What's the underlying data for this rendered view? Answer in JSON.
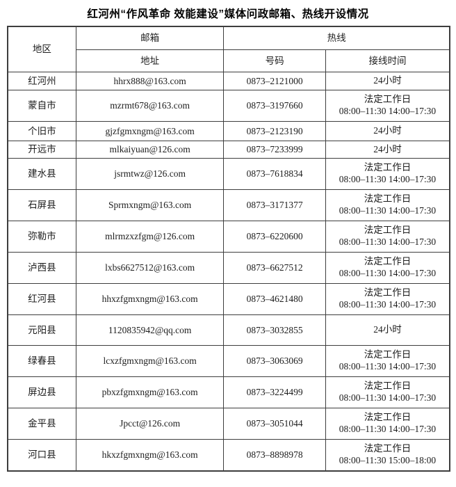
{
  "title": "红河州“作风革命 效能建设”媒体问政邮箱、热线开设情况",
  "colors": {
    "background": "#ffffff",
    "border": "#3d3d3d",
    "text": "#1c1c1c"
  },
  "table": {
    "headers": {
      "region": "地区",
      "mailbox_group": "邮箱",
      "hotline_group": "热线",
      "address": "地址",
      "number": "号码",
      "answer_time": "接线时间"
    },
    "rows": [
      {
        "region": "红河州",
        "email": "hhrx888@163.com",
        "phone": "0873–2121000",
        "time": [
          "24小时"
        ]
      },
      {
        "region": "蒙自市",
        "email": "mzrmt678@163.com",
        "phone": "0873–3197660",
        "time": [
          "法定工作日",
          "08:00–11:30  14:00–17:30"
        ]
      },
      {
        "region": "个旧市",
        "email": "gjzfgmxngm@163.com",
        "phone": "0873–2123190",
        "time": [
          "24小时"
        ]
      },
      {
        "region": "开远市",
        "email": "mlkaiyuan@126.com",
        "phone": "0873–7233999",
        "time": [
          "24小时"
        ]
      },
      {
        "region": "建水县",
        "email": "jsrmtwz@126.com",
        "phone": "0873–7618834",
        "time": [
          "法定工作日",
          "08:00–11:30  14:00–17:30"
        ]
      },
      {
        "region": "石屏县",
        "email": "Sprmxngm@163.com",
        "phone": "0873–3171377",
        "time": [
          "法定工作日",
          "08:00–11:30  14:00–17:30"
        ]
      },
      {
        "region": "弥勒市",
        "email": "mlrmzxzfgm@126.com",
        "phone": "0873–6220600",
        "time": [
          "法定工作日",
          "08:00–11:30  14:00–17:30"
        ]
      },
      {
        "region": "泸西县",
        "email": "lxbs6627512@163.com",
        "phone": "0873–6627512",
        "time": [
          "法定工作日",
          "08:00–11:30  14:00–17:30"
        ]
      },
      {
        "region": "红河县",
        "email": "hhxzfgmxngm@163.com",
        "phone": "0873–4621480",
        "time": [
          "法定工作日",
          "08:00–11:30  14:00–17:30"
        ]
      },
      {
        "region": "元阳县",
        "email": "1120835942@qq.com",
        "phone": "0873–3032855",
        "time": [
          "24小时"
        ]
      },
      {
        "region": "绿春县",
        "email": "lcxzfgmxngm@163.com",
        "phone": "0873–3063069",
        "time": [
          "法定工作日",
          "08:00–11:30  14:00–17:30"
        ]
      },
      {
        "region": "屏边县",
        "email": "pbxzfgmxngm@163.com",
        "phone": "0873–3224499",
        "time": [
          "法定工作日",
          "08:00–11:30  14:00–17:30"
        ]
      },
      {
        "region": "金平县",
        "email": "Jpcct@126.com",
        "phone": "0873–3051044",
        "time": [
          "法定工作日",
          "08:00–11:30  14:00–17:30"
        ]
      },
      {
        "region": "河口县",
        "email": "hkxzfgmxngm@163.com",
        "phone": "0873–8898978",
        "time": [
          "法定工作日",
          "08:00–11:30  15:00–18:00"
        ]
      }
    ]
  }
}
